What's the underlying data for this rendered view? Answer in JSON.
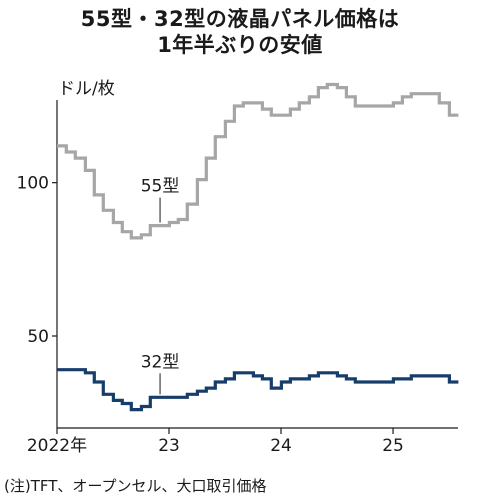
{
  "title_line1": "55型・32型の液晶パネル価格は",
  "title_line2": "1年半ぶりの安値",
  "unit": "ドル/枚",
  "note": "(注)TFT、オープンセル、大口取引価格",
  "chart_data": {
    "type": "line",
    "step": true,
    "y_ticks": [
      50,
      100
    ],
    "y_tick_labels": [
      "50",
      "100"
    ],
    "ylim": [
      20,
      140
    ],
    "x_ticks": [
      2022,
      2023,
      2024,
      2025
    ],
    "x_tick_labels": [
      "2022年",
      "23",
      "24",
      "25"
    ],
    "xlim": [
      2022.0,
      2025.58
    ],
    "grid": false,
    "series": [
      {
        "name": "55型",
        "label": "55型",
        "color": "#a6a6a6",
        "points": [
          [
            2022.0,
            112
          ],
          [
            2022.08,
            110
          ],
          [
            2022.17,
            108
          ],
          [
            2022.25,
            104
          ],
          [
            2022.33,
            96
          ],
          [
            2022.42,
            91
          ],
          [
            2022.5,
            87
          ],
          [
            2022.58,
            84
          ],
          [
            2022.67,
            82
          ],
          [
            2022.75,
            83
          ],
          [
            2022.83,
            86
          ],
          [
            2022.92,
            86
          ],
          [
            2023.0,
            87
          ],
          [
            2023.08,
            88
          ],
          [
            2023.17,
            93
          ],
          [
            2023.25,
            101
          ],
          [
            2023.33,
            108
          ],
          [
            2023.42,
            115
          ],
          [
            2023.5,
            120
          ],
          [
            2023.58,
            125
          ],
          [
            2023.67,
            126
          ],
          [
            2023.75,
            126
          ],
          [
            2023.83,
            124
          ],
          [
            2023.92,
            122
          ],
          [
            2024.0,
            122
          ],
          [
            2024.08,
            124
          ],
          [
            2024.17,
            126
          ],
          [
            2024.25,
            128
          ],
          [
            2024.33,
            131
          ],
          [
            2024.42,
            132
          ],
          [
            2024.5,
            131
          ],
          [
            2024.58,
            128
          ],
          [
            2024.67,
            125
          ],
          [
            2024.75,
            125
          ],
          [
            2024.83,
            125
          ],
          [
            2024.92,
            125
          ],
          [
            2025.0,
            126
          ],
          [
            2025.08,
            128
          ],
          [
            2025.17,
            129
          ],
          [
            2025.25,
            129
          ],
          [
            2025.33,
            129
          ],
          [
            2025.42,
            126
          ],
          [
            2025.5,
            122
          ]
        ]
      },
      {
        "name": "32型",
        "label": "32型",
        "color": "#173d6b",
        "points": [
          [
            2022.0,
            39
          ],
          [
            2022.08,
            39
          ],
          [
            2022.17,
            39
          ],
          [
            2022.25,
            38
          ],
          [
            2022.33,
            35
          ],
          [
            2022.42,
            31
          ],
          [
            2022.5,
            29
          ],
          [
            2022.58,
            28
          ],
          [
            2022.67,
            26
          ],
          [
            2022.75,
            27
          ],
          [
            2022.83,
            30
          ],
          [
            2022.92,
            30
          ],
          [
            2023.0,
            30
          ],
          [
            2023.08,
            30
          ],
          [
            2023.17,
            31
          ],
          [
            2023.25,
            32
          ],
          [
            2023.33,
            33
          ],
          [
            2023.42,
            35
          ],
          [
            2023.5,
            36
          ],
          [
            2023.58,
            38
          ],
          [
            2023.67,
            38
          ],
          [
            2023.75,
            37
          ],
          [
            2023.83,
            36
          ],
          [
            2023.92,
            33
          ],
          [
            2024.0,
            35
          ],
          [
            2024.08,
            36
          ],
          [
            2024.17,
            36
          ],
          [
            2024.25,
            37
          ],
          [
            2024.33,
            38
          ],
          [
            2024.42,
            38
          ],
          [
            2024.5,
            37
          ],
          [
            2024.58,
            36
          ],
          [
            2024.67,
            35
          ],
          [
            2024.75,
            35
          ],
          [
            2024.83,
            35
          ],
          [
            2024.92,
            35
          ],
          [
            2025.0,
            36
          ],
          [
            2025.08,
            36
          ],
          [
            2025.17,
            37
          ],
          [
            2025.25,
            37
          ],
          [
            2025.33,
            37
          ],
          [
            2025.42,
            37
          ],
          [
            2025.5,
            35
          ]
        ]
      }
    ]
  }
}
